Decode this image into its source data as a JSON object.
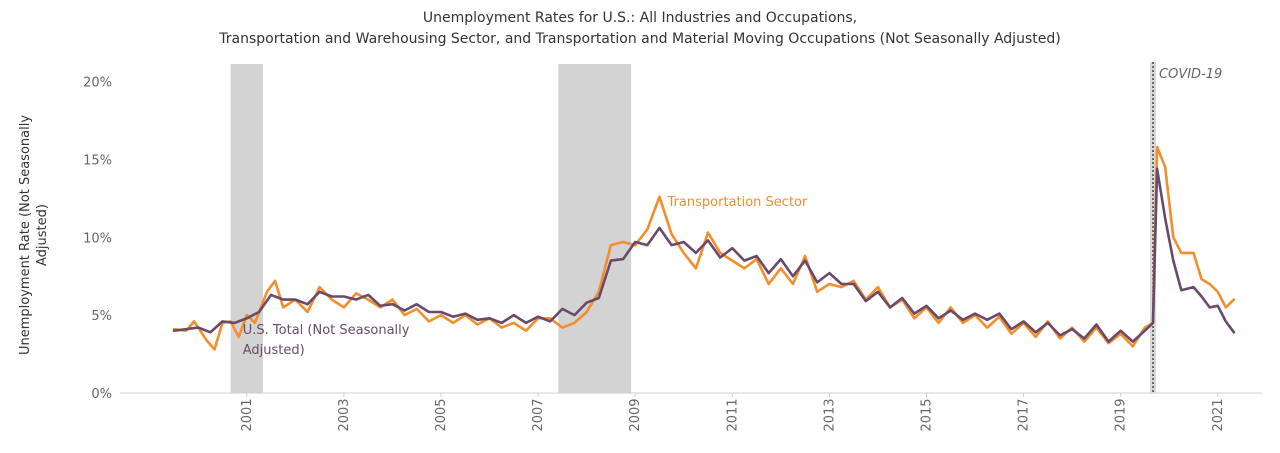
{
  "chart_data": {
    "type": "line",
    "title_lines": [
      "Unemployment Rates for U.S.: All Industries and Occupations,",
      "Transportation and Warehousing Sector, and Transportation and Material Moving Occupations (Not Seasonally Adjusted)"
    ],
    "ylabel_lines": [
      "Unemployment Rate (Not Seasonally",
      "Adjusted)"
    ],
    "xlabel": "",
    "xlim": [
      2000.0,
      2021.917
    ],
    "ylim": [
      0,
      21
    ],
    "x_ticks": [
      2001,
      2003,
      2005,
      2007,
      2009,
      2011,
      2013,
      2015,
      2017,
      2019,
      2021
    ],
    "y_ticks": [
      {
        "value": 0,
        "label": "0%"
      },
      {
        "value": 5,
        "label": "5%"
      },
      {
        "value": 10,
        "label": "10%"
      },
      {
        "value": 15,
        "label": "15%"
      },
      {
        "value": 20,
        "label": "20%"
      }
    ],
    "grid": false,
    "recessions": [
      {
        "start": "2001-03",
        "end": "2001-11"
      },
      {
        "start": "2007-12",
        "end": "2009-06"
      }
    ],
    "events": [
      {
        "date": "2020-03",
        "label": "COVID-19"
      }
    ],
    "series": [
      {
        "name": "Transportation Sector",
        "color": "#f28e2b",
        "points": [
          [
            "2000-01",
            4.1
          ],
          [
            "2000-04",
            4.0
          ],
          [
            "2000-06",
            4.6
          ],
          [
            "2000-09",
            3.4
          ],
          [
            "2000-11",
            2.8
          ],
          [
            "2001-01",
            4.5
          ],
          [
            "2001-03",
            4.6
          ],
          [
            "2001-05",
            3.6
          ],
          [
            "2001-07",
            5.0
          ],
          [
            "2001-09",
            4.5
          ],
          [
            "2001-12",
            6.5
          ],
          [
            "2002-02",
            7.2
          ],
          [
            "2002-04",
            5.5
          ],
          [
            "2002-07",
            6.0
          ],
          [
            "2002-10",
            5.2
          ],
          [
            "2003-01",
            6.8
          ],
          [
            "2003-04",
            6.0
          ],
          [
            "2003-07",
            5.5
          ],
          [
            "2003-10",
            6.4
          ],
          [
            "2004-01",
            6.0
          ],
          [
            "2004-04",
            5.5
          ],
          [
            "2004-07",
            6.0
          ],
          [
            "2004-10",
            5.0
          ],
          [
            "2005-01",
            5.4
          ],
          [
            "2005-04",
            4.6
          ],
          [
            "2005-07",
            5.0
          ],
          [
            "2005-10",
            4.5
          ],
          [
            "2006-01",
            5.0
          ],
          [
            "2006-04",
            4.4
          ],
          [
            "2006-07",
            4.8
          ],
          [
            "2006-10",
            4.2
          ],
          [
            "2007-01",
            4.5
          ],
          [
            "2007-04",
            4.0
          ],
          [
            "2007-07",
            4.8
          ],
          [
            "2007-10",
            4.8
          ],
          [
            "2008-01",
            4.2
          ],
          [
            "2008-04",
            4.5
          ],
          [
            "2008-07",
            5.2
          ],
          [
            "2008-10",
            6.5
          ],
          [
            "2009-01",
            9.5
          ],
          [
            "2009-04",
            9.7
          ],
          [
            "2009-07",
            9.5
          ],
          [
            "2009-10",
            10.5
          ],
          [
            "2010-01",
            12.6
          ],
          [
            "2010-04",
            10.2
          ],
          [
            "2010-07",
            9.0
          ],
          [
            "2010-10",
            8.0
          ],
          [
            "2011-01",
            10.3
          ],
          [
            "2011-04",
            9.0
          ],
          [
            "2011-07",
            8.5
          ],
          [
            "2011-10",
            8.0
          ],
          [
            "2012-01",
            8.6
          ],
          [
            "2012-04",
            7.0
          ],
          [
            "2012-07",
            8.0
          ],
          [
            "2012-10",
            7.0
          ],
          [
            "2013-01",
            8.8
          ],
          [
            "2013-04",
            6.5
          ],
          [
            "2013-07",
            7.0
          ],
          [
            "2013-10",
            6.8
          ],
          [
            "2014-01",
            7.2
          ],
          [
            "2014-04",
            6.0
          ],
          [
            "2014-07",
            6.8
          ],
          [
            "2014-10",
            5.5
          ],
          [
            "2015-01",
            6.0
          ],
          [
            "2015-04",
            4.8
          ],
          [
            "2015-07",
            5.5
          ],
          [
            "2015-10",
            4.5
          ],
          [
            "2016-01",
            5.5
          ],
          [
            "2016-04",
            4.5
          ],
          [
            "2016-07",
            5.0
          ],
          [
            "2016-10",
            4.2
          ],
          [
            "2017-01",
            4.9
          ],
          [
            "2017-04",
            3.8
          ],
          [
            "2017-07",
            4.5
          ],
          [
            "2017-10",
            3.6
          ],
          [
            "2018-01",
            4.6
          ],
          [
            "2018-04",
            3.5
          ],
          [
            "2018-07",
            4.2
          ],
          [
            "2018-10",
            3.3
          ],
          [
            "2019-01",
            4.2
          ],
          [
            "2019-04",
            3.2
          ],
          [
            "2019-07",
            3.8
          ],
          [
            "2019-10",
            3.0
          ],
          [
            "2020-01",
            4.2
          ],
          [
            "2020-03",
            4.5
          ],
          [
            "2020-04",
            15.8
          ],
          [
            "2020-06",
            14.5
          ],
          [
            "2020-08",
            10.0
          ],
          [
            "2020-10",
            9.0
          ],
          [
            "2021-01",
            9.0
          ],
          [
            "2021-03",
            7.3
          ],
          [
            "2021-05",
            7.0
          ],
          [
            "2021-07",
            6.5
          ],
          [
            "2021-09",
            5.5
          ],
          [
            "2021-11",
            6.0
          ]
        ]
      },
      {
        "name": "U.S. Total (Not Seasonally Adjusted)",
        "color": "#6a4a6b",
        "points": [
          [
            "2000-01",
            4.0
          ],
          [
            "2000-04",
            4.1
          ],
          [
            "2000-07",
            4.2
          ],
          [
            "2000-10",
            3.9
          ],
          [
            "2001-01",
            4.6
          ],
          [
            "2001-04",
            4.5
          ],
          [
            "2001-07",
            4.8
          ],
          [
            "2001-10",
            5.2
          ],
          [
            "2002-01",
            6.3
          ],
          [
            "2002-04",
            6.0
          ],
          [
            "2002-07",
            6.0
          ],
          [
            "2002-10",
            5.7
          ],
          [
            "2003-01",
            6.5
          ],
          [
            "2003-04",
            6.2
          ],
          [
            "2003-07",
            6.2
          ],
          [
            "2003-10",
            6.0
          ],
          [
            "2004-01",
            6.3
          ],
          [
            "2004-04",
            5.6
          ],
          [
            "2004-07",
            5.7
          ],
          [
            "2004-10",
            5.3
          ],
          [
            "2005-01",
            5.7
          ],
          [
            "2005-04",
            5.2
          ],
          [
            "2005-07",
            5.2
          ],
          [
            "2005-10",
            4.9
          ],
          [
            "2006-01",
            5.1
          ],
          [
            "2006-04",
            4.7
          ],
          [
            "2006-07",
            4.8
          ],
          [
            "2006-10",
            4.5
          ],
          [
            "2007-01",
            5.0
          ],
          [
            "2007-04",
            4.5
          ],
          [
            "2007-07",
            4.9
          ],
          [
            "2007-10",
            4.6
          ],
          [
            "2008-01",
            5.4
          ],
          [
            "2008-04",
            5.0
          ],
          [
            "2008-07",
            5.8
          ],
          [
            "2008-10",
            6.1
          ],
          [
            "2009-01",
            8.5
          ],
          [
            "2009-04",
            8.6
          ],
          [
            "2009-07",
            9.7
          ],
          [
            "2009-10",
            9.5
          ],
          [
            "2010-01",
            10.6
          ],
          [
            "2010-04",
            9.5
          ],
          [
            "2010-07",
            9.7
          ],
          [
            "2010-10",
            9.0
          ],
          [
            "2011-01",
            9.8
          ],
          [
            "2011-04",
            8.7
          ],
          [
            "2011-07",
            9.3
          ],
          [
            "2011-10",
            8.5
          ],
          [
            "2012-01",
            8.8
          ],
          [
            "2012-04",
            7.7
          ],
          [
            "2012-07",
            8.6
          ],
          [
            "2012-10",
            7.5
          ],
          [
            "2013-01",
            8.5
          ],
          [
            "2013-04",
            7.1
          ],
          [
            "2013-07",
            7.7
          ],
          [
            "2013-10",
            7.0
          ],
          [
            "2014-01",
            7.0
          ],
          [
            "2014-04",
            5.9
          ],
          [
            "2014-07",
            6.5
          ],
          [
            "2014-10",
            5.5
          ],
          [
            "2015-01",
            6.1
          ],
          [
            "2015-04",
            5.1
          ],
          [
            "2015-07",
            5.6
          ],
          [
            "2015-10",
            4.8
          ],
          [
            "2016-01",
            5.3
          ],
          [
            "2016-04",
            4.7
          ],
          [
            "2016-07",
            5.1
          ],
          [
            "2016-10",
            4.7
          ],
          [
            "2017-01",
            5.1
          ],
          [
            "2017-04",
            4.1
          ],
          [
            "2017-07",
            4.6
          ],
          [
            "2017-10",
            3.9
          ],
          [
            "2018-01",
            4.5
          ],
          [
            "2018-04",
            3.7
          ],
          [
            "2018-07",
            4.1
          ],
          [
            "2018-10",
            3.5
          ],
          [
            "2019-01",
            4.4
          ],
          [
            "2019-04",
            3.3
          ],
          [
            "2019-07",
            4.0
          ],
          [
            "2019-10",
            3.3
          ],
          [
            "2020-01",
            4.0
          ],
          [
            "2020-03",
            4.5
          ],
          [
            "2020-04",
            14.4
          ],
          [
            "2020-06",
            11.2
          ],
          [
            "2020-08",
            8.5
          ],
          [
            "2020-10",
            6.6
          ],
          [
            "2021-01",
            6.8
          ],
          [
            "2021-03",
            6.2
          ],
          [
            "2021-05",
            5.5
          ],
          [
            "2021-07",
            5.6
          ],
          [
            "2021-09",
            4.6
          ],
          [
            "2021-11",
            3.9
          ]
        ]
      }
    ],
    "annotations": [
      {
        "series": 0,
        "lines": [
          "Transportation Sector"
        ],
        "anchor": "2010-03",
        "y": 12.0,
        "color": "#f28e2b"
      },
      {
        "series": 1,
        "lines": [
          "U.S. Total (Not Seasonally",
          "Adjusted)"
        ],
        "anchor": "2001-06",
        "y": 3.8,
        "color": "#6a4a6b"
      }
    ]
  }
}
